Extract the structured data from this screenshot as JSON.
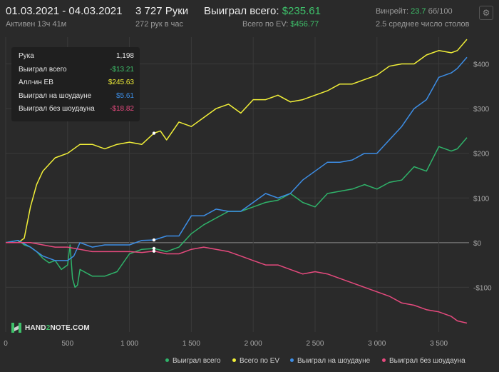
{
  "header": {
    "date_range": "01.03.2021 - 04.03.2021",
    "active_time": "Активен 13ч 41м",
    "hands": "3 727 Руки",
    "hands_per_hour": "272 рук в час",
    "won_total_label": "Выиграл всего:",
    "won_total_value": "$235.61",
    "ev_total_label": "Всего по EV:",
    "ev_total_value": "$456.77",
    "winrate_label": "Винрейт:",
    "winrate_value": "23.7",
    "winrate_unit": "бб/100",
    "tables": "2.5 среднее число столов",
    "settings_icon": "gear-icon"
  },
  "tooltip": {
    "rows": [
      {
        "label": "Рука",
        "value": "1,198",
        "color": "#e6e6e6"
      },
      {
        "label": "Выиграл всего",
        "value": "-$13.21",
        "color": "#3ec06a"
      },
      {
        "label": "Алл-ин EB",
        "value": "$245.63",
        "color": "#f2f038"
      },
      {
        "label": "Выиграл на шоудауне",
        "value": "$5.61",
        "color": "#3d8ee6"
      },
      {
        "label": "Выиграл без шоудауна",
        "value": "-$18.82",
        "color": "#e64a7e"
      }
    ]
  },
  "logo": {
    "prefix": "HAND",
    "middle": "2",
    "suffix": "NOTE.COM"
  },
  "colors": {
    "background": "#2a2a2a",
    "grid": "#3a3a3a",
    "zero_line": "#8a8a8a",
    "won": "#2fb36a",
    "ev": "#f2f038",
    "showdown": "#3d8ee6",
    "non_showdown": "#e64a7e"
  },
  "chart_data": {
    "type": "line",
    "x_ticks": [
      0,
      500,
      1000,
      1500,
      2000,
      2500,
      3000,
      3500
    ],
    "x_tick_labels": [
      "0",
      "500",
      "1 000",
      "1 500",
      "2 000",
      "2 500",
      "3 000",
      "3 500"
    ],
    "y_ticks": [
      -100,
      0,
      100,
      200,
      300,
      400
    ],
    "y_tick_labels": [
      "-$100",
      "$0",
      "$100",
      "$200",
      "$300",
      "$400"
    ],
    "xlim": [
      0,
      3727
    ],
    "ylim": [
      -200,
      460
    ],
    "legend": "bottom",
    "series": [
      {
        "name": "Выиграл всего",
        "color_key": "won",
        "points": [
          [
            0,
            0
          ],
          [
            100,
            5
          ],
          [
            150,
            -5
          ],
          [
            200,
            -10
          ],
          [
            250,
            -20
          ],
          [
            300,
            -35
          ],
          [
            350,
            -45
          ],
          [
            400,
            -40
          ],
          [
            450,
            -60
          ],
          [
            500,
            -50
          ],
          [
            520,
            -5
          ],
          [
            540,
            -80
          ],
          [
            560,
            -100
          ],
          [
            580,
            -95
          ],
          [
            600,
            -60
          ],
          [
            700,
            -75
          ],
          [
            800,
            -75
          ],
          [
            900,
            -65
          ],
          [
            1000,
            -25
          ],
          [
            1100,
            -15
          ],
          [
            1198,
            -13
          ],
          [
            1300,
            -20
          ],
          [
            1400,
            -10
          ],
          [
            1500,
            20
          ],
          [
            1600,
            40
          ],
          [
            1700,
            55
          ],
          [
            1800,
            70
          ],
          [
            1900,
            70
          ],
          [
            2000,
            80
          ],
          [
            2100,
            90
          ],
          [
            2200,
            95
          ],
          [
            2300,
            110
          ],
          [
            2400,
            90
          ],
          [
            2500,
            80
          ],
          [
            2600,
            110
          ],
          [
            2700,
            115
          ],
          [
            2800,
            120
          ],
          [
            2900,
            130
          ],
          [
            3000,
            120
          ],
          [
            3100,
            135
          ],
          [
            3200,
            140
          ],
          [
            3300,
            170
          ],
          [
            3400,
            160
          ],
          [
            3500,
            215
          ],
          [
            3600,
            205
          ],
          [
            3650,
            210
          ],
          [
            3727,
            235
          ]
        ]
      },
      {
        "name": "Всего по EV",
        "color_key": "ev",
        "points": [
          [
            0,
            0
          ],
          [
            100,
            0
          ],
          [
            150,
            10
          ],
          [
            200,
            80
          ],
          [
            250,
            130
          ],
          [
            300,
            160
          ],
          [
            350,
            175
          ],
          [
            400,
            190
          ],
          [
            500,
            200
          ],
          [
            600,
            220
          ],
          [
            700,
            220
          ],
          [
            800,
            210
          ],
          [
            900,
            220
          ],
          [
            1000,
            225
          ],
          [
            1100,
            220
          ],
          [
            1198,
            245
          ],
          [
            1250,
            250
          ],
          [
            1300,
            230
          ],
          [
            1400,
            270
          ],
          [
            1500,
            260
          ],
          [
            1600,
            280
          ],
          [
            1700,
            300
          ],
          [
            1800,
            310
          ],
          [
            1900,
            290
          ],
          [
            2000,
            320
          ],
          [
            2100,
            320
          ],
          [
            2200,
            330
          ],
          [
            2300,
            315
          ],
          [
            2400,
            320
          ],
          [
            2500,
            330
          ],
          [
            2600,
            340
          ],
          [
            2700,
            355
          ],
          [
            2800,
            355
          ],
          [
            2900,
            365
          ],
          [
            3000,
            375
          ],
          [
            3100,
            395
          ],
          [
            3200,
            400
          ],
          [
            3300,
            400
          ],
          [
            3400,
            420
          ],
          [
            3500,
            430
          ],
          [
            3600,
            425
          ],
          [
            3650,
            430
          ],
          [
            3727,
            455
          ]
        ]
      },
      {
        "name": "Выиграл на шоудауне",
        "color_key": "showdown",
        "points": [
          [
            0,
            0
          ],
          [
            100,
            5
          ],
          [
            200,
            -10
          ],
          [
            300,
            -30
          ],
          [
            400,
            -40
          ],
          [
            500,
            -40
          ],
          [
            550,
            -30
          ],
          [
            600,
            0
          ],
          [
            700,
            -10
          ],
          [
            800,
            -5
          ],
          [
            900,
            -5
          ],
          [
            1000,
            -5
          ],
          [
            1100,
            5
          ],
          [
            1198,
            6
          ],
          [
            1300,
            15
          ],
          [
            1400,
            15
          ],
          [
            1500,
            60
          ],
          [
            1600,
            60
          ],
          [
            1700,
            75
          ],
          [
            1800,
            70
          ],
          [
            1900,
            70
          ],
          [
            2000,
            90
          ],
          [
            2100,
            110
          ],
          [
            2200,
            100
          ],
          [
            2300,
            110
          ],
          [
            2400,
            140
          ],
          [
            2500,
            160
          ],
          [
            2600,
            180
          ],
          [
            2700,
            180
          ],
          [
            2800,
            185
          ],
          [
            2900,
            200
          ],
          [
            3000,
            200
          ],
          [
            3100,
            230
          ],
          [
            3200,
            260
          ],
          [
            3300,
            300
          ],
          [
            3400,
            320
          ],
          [
            3500,
            370
          ],
          [
            3600,
            380
          ],
          [
            3650,
            390
          ],
          [
            3727,
            415
          ]
        ]
      },
      {
        "name": "Выиграл без шоудауна",
        "color_key": "non_showdown",
        "points": [
          [
            0,
            0
          ],
          [
            100,
            0
          ],
          [
            200,
            0
          ],
          [
            300,
            -5
          ],
          [
            400,
            -10
          ],
          [
            500,
            -10
          ],
          [
            600,
            -15
          ],
          [
            700,
            -20
          ],
          [
            800,
            -20
          ],
          [
            900,
            -20
          ],
          [
            1000,
            -20
          ],
          [
            1100,
            -22
          ],
          [
            1198,
            -19
          ],
          [
            1300,
            -25
          ],
          [
            1400,
            -25
          ],
          [
            1500,
            -15
          ],
          [
            1600,
            -10
          ],
          [
            1700,
            -15
          ],
          [
            1800,
            -20
          ],
          [
            1900,
            -30
          ],
          [
            2000,
            -40
          ],
          [
            2100,
            -50
          ],
          [
            2200,
            -50
          ],
          [
            2300,
            -60
          ],
          [
            2400,
            -70
          ],
          [
            2500,
            -65
          ],
          [
            2600,
            -70
          ],
          [
            2700,
            -80
          ],
          [
            2800,
            -90
          ],
          [
            2900,
            -100
          ],
          [
            3000,
            -110
          ],
          [
            3100,
            -120
          ],
          [
            3200,
            -135
          ],
          [
            3300,
            -140
          ],
          [
            3400,
            -150
          ],
          [
            3500,
            -155
          ],
          [
            3600,
            -165
          ],
          [
            3650,
            -175
          ],
          [
            3727,
            -180
          ]
        ]
      }
    ]
  },
  "legend": [
    {
      "label": "Выиграл всего",
      "color_key": "won"
    },
    {
      "label": "Всего по EV",
      "color_key": "ev"
    },
    {
      "label": "Выиграл на шоудауне",
      "color_key": "showdown"
    },
    {
      "label": "Выиграл без шоудауна",
      "color_key": "non_showdown"
    }
  ]
}
